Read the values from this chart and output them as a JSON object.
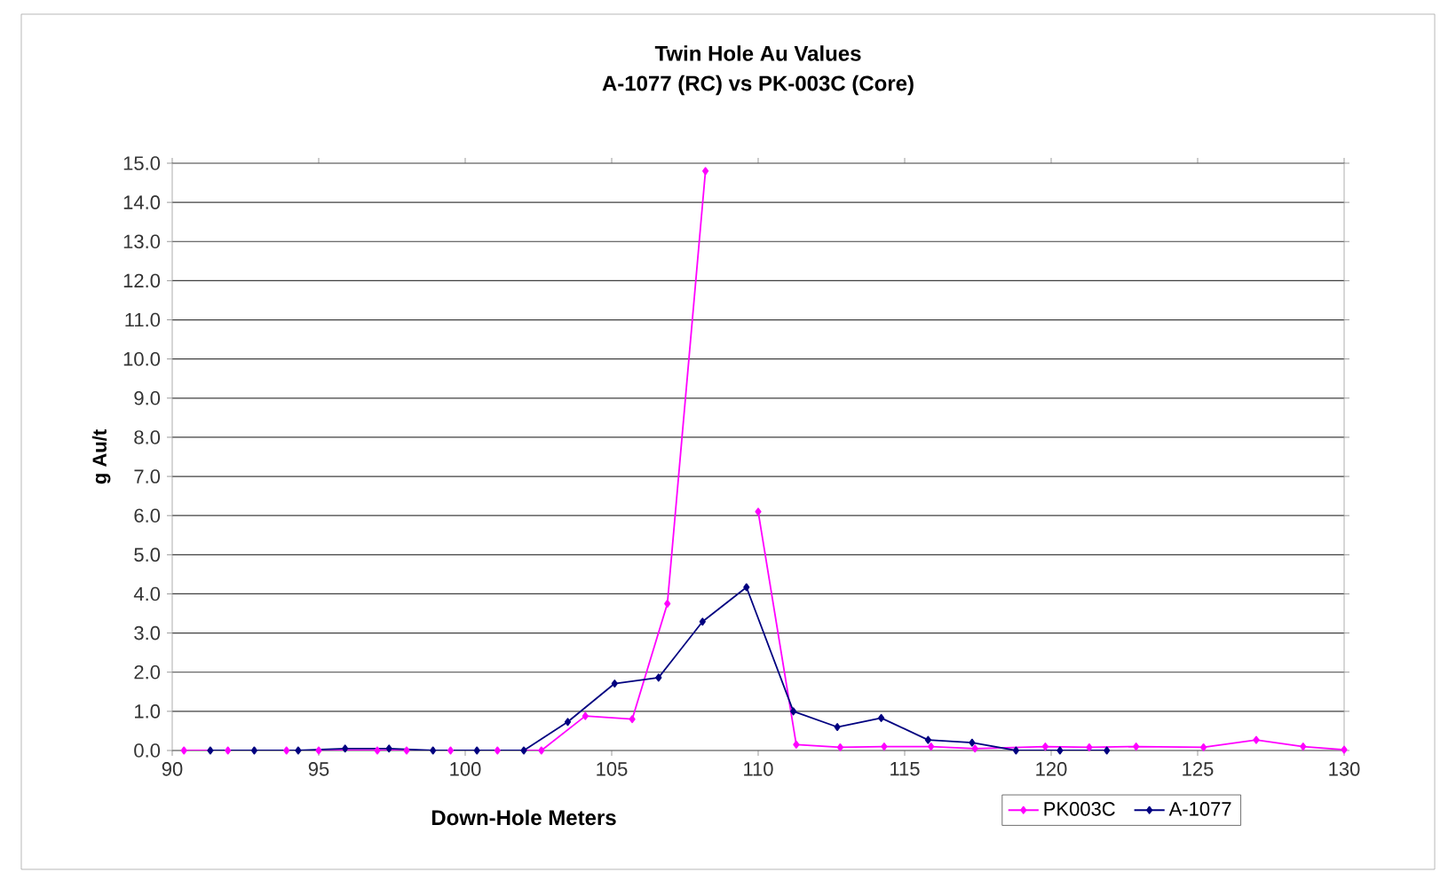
{
  "chart_data": {
    "type": "line",
    "title": "Twin Hole Au Values",
    "subtitle": "A-1077 (RC) vs PK-003C (Core)",
    "xlabel": "Down-Hole Meters",
    "ylabel": "g Au/t",
    "xlim": [
      90,
      130
    ],
    "xticks": [
      90,
      95,
      100,
      105,
      110,
      115,
      120,
      125,
      130
    ],
    "ylim": [
      0,
      15
    ],
    "yticks": [
      {
        "value": 0,
        "label": "0.0"
      },
      {
        "value": 1,
        "label": "1.0"
      },
      {
        "value": 2,
        "label": "2.0"
      },
      {
        "value": 3,
        "label": "3.0"
      },
      {
        "value": 4,
        "label": "4.0"
      },
      {
        "value": 5,
        "label": "5.0"
      },
      {
        "value": 6,
        "label": "6.0"
      },
      {
        "value": 7,
        "label": "7.0"
      },
      {
        "value": 8,
        "label": "8.0"
      },
      {
        "value": 9,
        "label": "9.0"
      },
      {
        "value": 10,
        "label": "10.0"
      },
      {
        "value": 11,
        "label": "11.0"
      },
      {
        "value": 12,
        "label": "12.0"
      },
      {
        "value": 13,
        "label": "13.0"
      },
      {
        "value": 14,
        "label": "14.0"
      },
      {
        "value": 15,
        "label": "15.0"
      }
    ],
    "grid": "y",
    "legend": "bottom right",
    "marker": "diamond",
    "line_style": "solid",
    "series": [
      {
        "name": "PK003C",
        "color": "#ff00ff",
        "x": [
          90.4,
          91.9,
          93.9,
          95.0,
          97.0,
          98.0,
          99.5,
          101.1,
          102.6,
          104.1,
          105.7,
          106.9,
          108.2,
          109.1,
          110.0,
          111.3,
          112.8,
          114.3,
          115.9,
          117.4,
          119.8,
          121.3,
          122.9,
          125.2,
          127.0,
          128.6,
          130.0
        ],
        "values": [
          0,
          0,
          0,
          0,
          0,
          0,
          0,
          0,
          0,
          0.88,
          0.8,
          3.75,
          14.8,
          null,
          6.1,
          0.15,
          0.08,
          0.1,
          0.1,
          0.05,
          0.1,
          0.08,
          0.1,
          0.08,
          0.27,
          0.1,
          0.02
        ]
      },
      {
        "name": "A-1077",
        "color": "#000080",
        "x": [
          91.3,
          92.8,
          94.3,
          95.9,
          97.4,
          98.9,
          100.4,
          102.0,
          103.5,
          105.1,
          106.6,
          108.1,
          109.6,
          111.2,
          112.7,
          114.2,
          115.8,
          117.3,
          118.8,
          120.3,
          121.9
        ],
        "values": [
          0,
          0,
          0,
          0.05,
          0.05,
          0,
          0,
          0,
          0.73,
          1.71,
          1.86,
          3.29,
          4.17,
          1.0,
          0.6,
          0.83,
          0.27,
          0.2,
          0,
          0,
          0
        ]
      }
    ]
  }
}
